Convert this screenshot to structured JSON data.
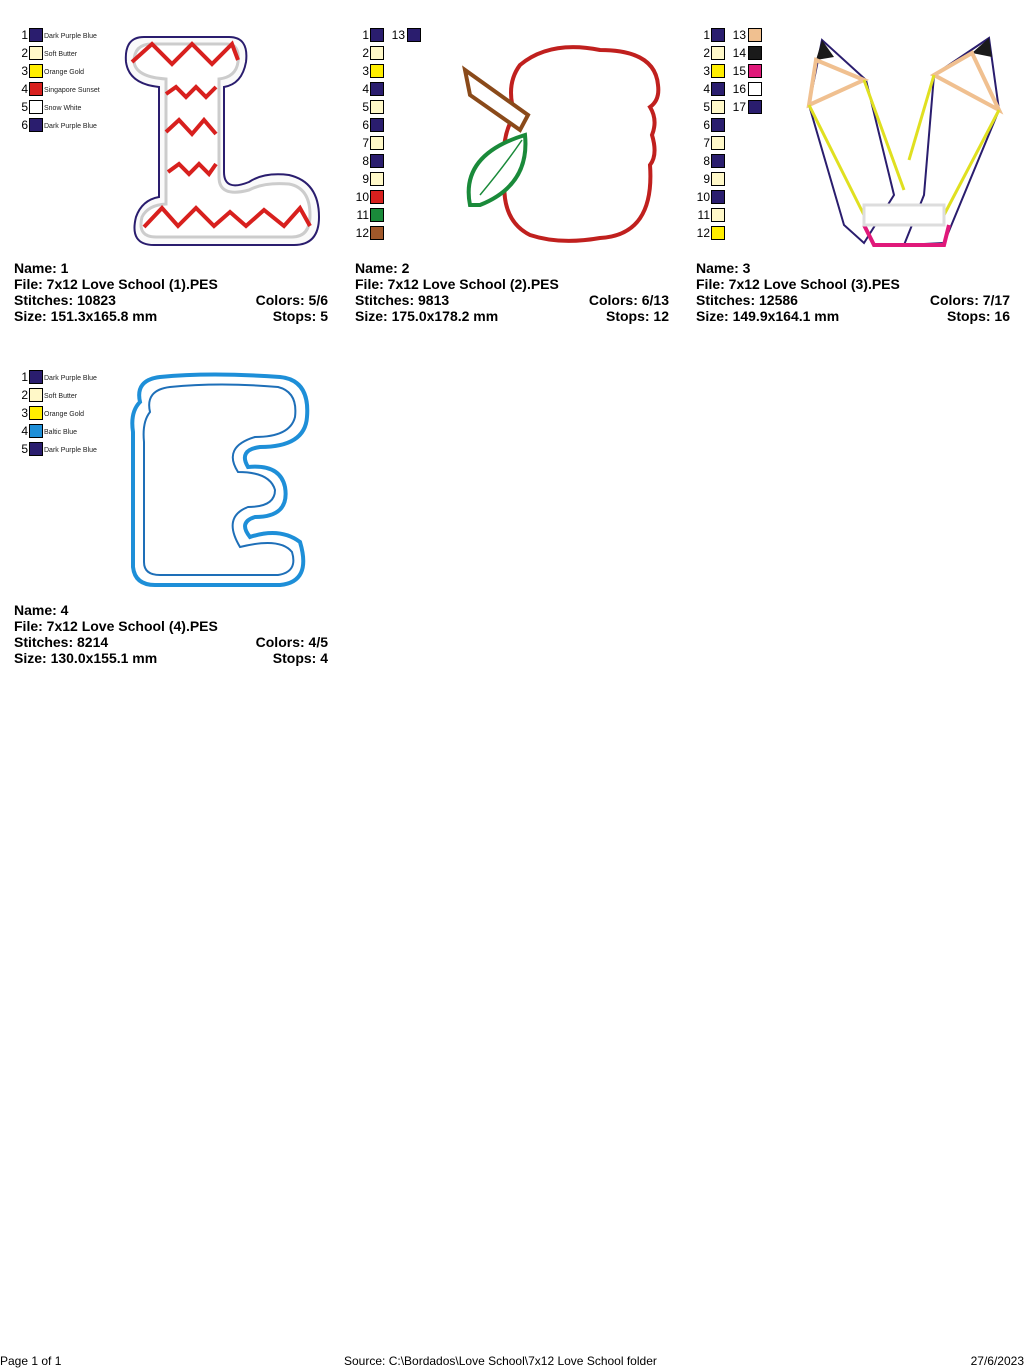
{
  "colors": {
    "purple": "#2a1d6e",
    "butter": "#fff8c8",
    "gold": "#ffee00",
    "red": "#d8201e",
    "white": "#ffffff",
    "blue": "#1e8fd8",
    "green": "#1a8a3a",
    "brown": "#a0582a",
    "tan": "#f0c090",
    "black": "#1a1a1a",
    "pink": "#e0197a"
  },
  "designs": [
    {
      "name": "Name: 1",
      "file": "File: 7x12 Love School (1).PES",
      "stitches": "Stitches: 10823",
      "colors": "Colors: 5/6",
      "size": "Size: 151.3x165.8 mm",
      "stops": "Stops: 5",
      "legend": [
        [
          "1",
          "purple",
          "Dark Purple Blue"
        ],
        [
          "2",
          "butter",
          "Soft Butter"
        ],
        [
          "3",
          "gold",
          "Orange Gold"
        ],
        [
          "4",
          "red",
          "Singapore Sunset"
        ],
        [
          "5",
          "white",
          "Snow White"
        ],
        [
          "6",
          "purple",
          "Dark Purple Blue"
        ]
      ]
    },
    {
      "name": "Name: 2",
      "file": "File: 7x12 Love School (2).PES",
      "stitches": "Stitches: 9813",
      "colors": "Colors: 6/13",
      "size": "Size: 175.0x178.2 mm",
      "stops": "Stops: 12",
      "legend": [
        [
          "1",
          "purple"
        ],
        [
          "2",
          "butter"
        ],
        [
          "3",
          "gold"
        ],
        [
          "4",
          "purple"
        ],
        [
          "5",
          "butter"
        ],
        [
          "6",
          "purple"
        ],
        [
          "7",
          "butter"
        ],
        [
          "8",
          "purple"
        ],
        [
          "9",
          "butter"
        ],
        [
          "10",
          "red"
        ],
        [
          "11",
          "green"
        ],
        [
          "12",
          "brown"
        ],
        [
          "13",
          "purple"
        ]
      ]
    },
    {
      "name": "Name: 3",
      "file": "File: 7x12 Love School (3).PES",
      "stitches": "Stitches: 12586",
      "colors": "Colors: 7/17",
      "size": "Size: 149.9x164.1 mm",
      "stops": "Stops: 16",
      "legend": [
        [
          "1",
          "purple"
        ],
        [
          "2",
          "butter"
        ],
        [
          "3",
          "gold"
        ],
        [
          "4",
          "purple"
        ],
        [
          "5",
          "butter"
        ],
        [
          "6",
          "purple"
        ],
        [
          "7",
          "butter"
        ],
        [
          "8",
          "purple"
        ],
        [
          "9",
          "butter"
        ],
        [
          "10",
          "purple"
        ],
        [
          "11",
          "butter"
        ],
        [
          "12",
          "gold"
        ],
        [
          "13",
          "tan"
        ],
        [
          "14",
          "black"
        ],
        [
          "15",
          "pink"
        ],
        [
          "16",
          "white"
        ],
        [
          "17",
          "purple"
        ]
      ]
    },
    {
      "name": "Name: 4",
      "file": "File: 7x12 Love School (4).PES",
      "stitches": "Stitches: 8214",
      "colors": "Colors: 4/5",
      "size": "Size: 130.0x155.1 mm",
      "stops": "Stops: 4",
      "legend": [
        [
          "1",
          "purple",
          "Dark Purple Blue"
        ],
        [
          "2",
          "butter",
          "Soft Butter"
        ],
        [
          "3",
          "gold",
          "Orange Gold"
        ],
        [
          "4",
          "blue",
          "Baltic Blue"
        ],
        [
          "5",
          "purple",
          "Dark Purple Blue"
        ]
      ]
    }
  ],
  "footer": {
    "page": "Page 1 of 1",
    "source": "Source: C:\\Bordados\\Love School\\7x12 Love School folder",
    "date": "27/6/2023"
  }
}
